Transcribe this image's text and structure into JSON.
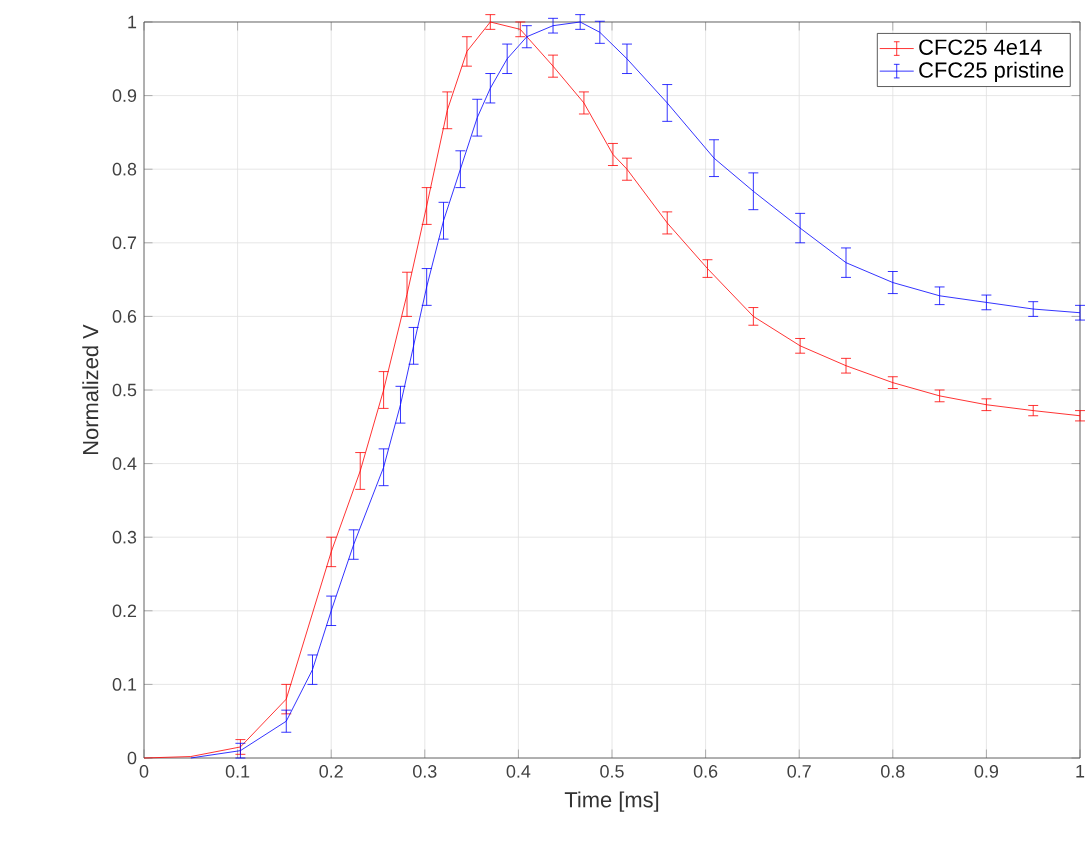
{
  "chart_data": {
    "type": "line",
    "xlabel": "Time [ms]",
    "ylabel": "Normalized V",
    "xlim": [
      0,
      1
    ],
    "ylim": [
      0,
      1
    ],
    "xticks": [
      0,
      0.1,
      0.2,
      0.3,
      0.4,
      0.5,
      0.6,
      0.7,
      0.8,
      0.9,
      1
    ],
    "yticks": [
      0,
      0.1,
      0.2,
      0.3,
      0.4,
      0.5,
      0.6,
      0.7,
      0.8,
      0.9,
      1
    ],
    "grid": true,
    "legend": "top right",
    "marker": "none",
    "line_style": "solid",
    "series": [
      {
        "name": "CFC25 4e14",
        "color": "#ff0000",
        "x": [
          0,
          0.05,
          0.103,
          0.152,
          0.2,
          0.231,
          0.256,
          0.281,
          0.302,
          0.324,
          0.345,
          0.37,
          0.402,
          0.437,
          0.47,
          0.501,
          0.516,
          0.559,
          0.602,
          0.651,
          0.701,
          0.75,
          0.8,
          0.85,
          0.9,
          0.95,
          1
        ],
        "values": [
          0,
          0.002,
          0.015,
          0.08,
          0.28,
          0.39,
          0.5,
          0.63,
          0.75,
          0.88,
          0.96,
          1.0,
          0.99,
          0.94,
          0.89,
          0.82,
          0.8,
          0.727,
          0.665,
          0.6,
          0.56,
          0.533,
          0.51,
          0.492,
          0.48,
          0.472,
          0.465
        ],
        "errors": [
          null,
          null,
          0.01,
          0.02,
          0.02,
          0.025,
          0.025,
          0.03,
          0.025,
          0.025,
          0.02,
          0.01,
          0.01,
          0.015,
          0.015,
          0.015,
          0.015,
          0.015,
          0.012,
          0.012,
          0.01,
          0.01,
          0.008,
          0.008,
          0.008,
          0.007,
          0.007
        ]
      },
      {
        "name": "CFC25 pristine",
        "color": "#0000ff",
        "x": [
          0.05,
          0.103,
          0.152,
          0.18,
          0.2,
          0.224,
          0.256,
          0.274,
          0.288,
          0.302,
          0.32,
          0.338,
          0.356,
          0.37,
          0.388,
          0.409,
          0.437,
          0.466,
          0.487,
          0.516,
          0.559,
          0.609,
          0.651,
          0.701,
          0.75,
          0.8,
          0.85,
          0.9,
          0.95,
          1
        ],
        "values": [
          0,
          0.01,
          0.05,
          0.12,
          0.2,
          0.29,
          0.395,
          0.48,
          0.56,
          0.64,
          0.73,
          0.8,
          0.87,
          0.91,
          0.95,
          0.98,
          0.995,
          1.0,
          0.986,
          0.95,
          0.89,
          0.815,
          0.77,
          0.72,
          0.673,
          0.646,
          0.628,
          0.619,
          0.61,
          0.605
        ],
        "errors": [
          null,
          0.01,
          0.015,
          0.02,
          0.02,
          0.02,
          0.025,
          0.025,
          0.025,
          0.025,
          0.025,
          0.025,
          0.025,
          0.02,
          0.02,
          0.015,
          0.01,
          0.01,
          0.015,
          0.02,
          0.025,
          0.025,
          0.025,
          0.02,
          0.02,
          0.015,
          0.012,
          0.01,
          0.01,
          0.01
        ]
      }
    ]
  }
}
